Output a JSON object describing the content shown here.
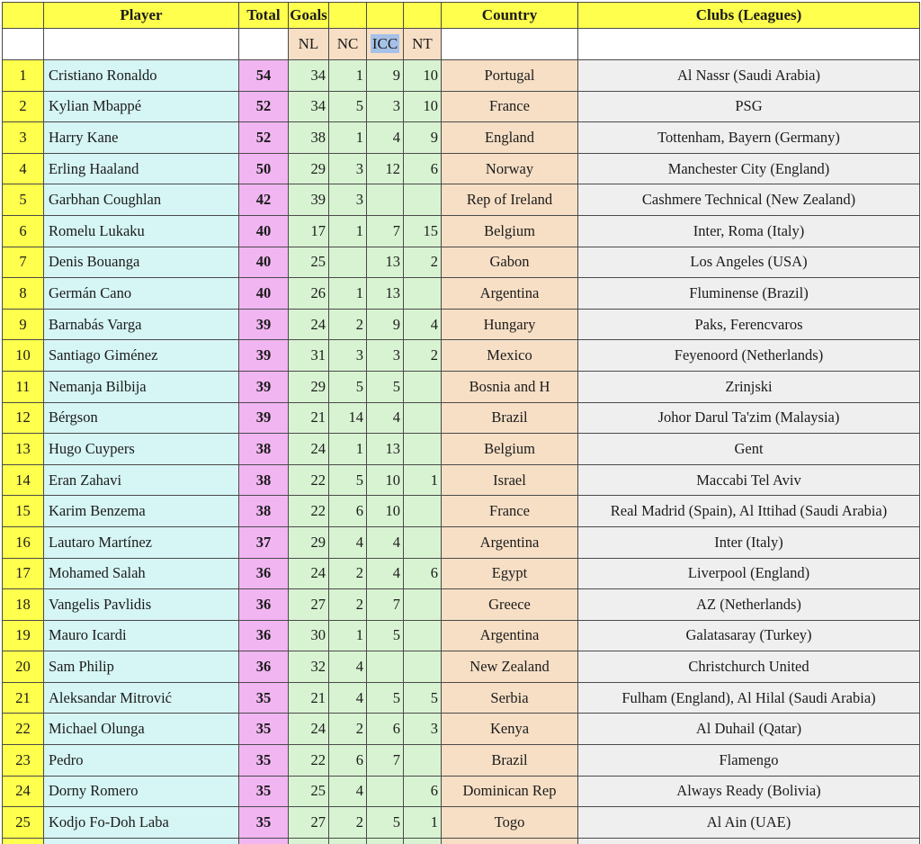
{
  "colors": {
    "yellow": "#FFFF4D",
    "cyan": "#D6F5F5",
    "pink": "#F1B5F1",
    "green": "#D8F3D2",
    "peach": "#F7DFC5",
    "gray": "#EFEFEF",
    "icc_highlight": "#A6C1E8",
    "border": "#4a4a4a"
  },
  "table": {
    "header": {
      "rank": "",
      "player": "Player",
      "total": "Total",
      "goals": "Goals",
      "country": "Country",
      "clubs": "Clubs (Leagues)",
      "subcols": [
        "NL",
        "NC",
        "ICC",
        "NT"
      ],
      "highlighted_subcol": "ICC"
    },
    "rows": [
      {
        "rank": "1",
        "player": "Cristiano Ronaldo",
        "total": "54",
        "nl": "34",
        "nc": "1",
        "icc": "9",
        "nt": "10",
        "country": "Portugal",
        "clubs": "Al Nassr (Saudi Arabia)"
      },
      {
        "rank": "2",
        "player": "Kylian Mbappé",
        "total": "52",
        "nl": "34",
        "nc": "5",
        "icc": "3",
        "nt": "10",
        "country": "France",
        "clubs": "PSG"
      },
      {
        "rank": "3",
        "player": "Harry Kane",
        "total": "52",
        "nl": "38",
        "nc": "1",
        "icc": "4",
        "nt": "9",
        "country": "England",
        "clubs": "Tottenham, Bayern (Germany)"
      },
      {
        "rank": "4",
        "player": "Erling Haaland",
        "total": "50",
        "nl": "29",
        "nc": "3",
        "icc": "12",
        "nt": "6",
        "country": "Norway",
        "clubs": "Manchester City (England)"
      },
      {
        "rank": "5",
        "player": "Garbhan Coughlan",
        "total": "42",
        "nl": "39",
        "nc": "3",
        "icc": "",
        "nt": "",
        "country": "Rep of Ireland",
        "clubs": "Cashmere Technical (New Zealand)"
      },
      {
        "rank": "6",
        "player": "Romelu Lukaku",
        "total": "40",
        "nl": "17",
        "nc": "1",
        "icc": "7",
        "nt": "15",
        "country": "Belgium",
        "clubs": "Inter, Roma (Italy)"
      },
      {
        "rank": "7",
        "player": "Denis Bouanga",
        "total": "40",
        "nl": "25",
        "nc": "",
        "icc": "13",
        "nt": "2",
        "country": "Gabon",
        "clubs": "Los Angeles (USA)"
      },
      {
        "rank": "8",
        "player": "Germán Cano",
        "total": "40",
        "nl": "26",
        "nc": "1",
        "icc": "13",
        "nt": "",
        "country": "Argentina",
        "clubs": "Fluminense (Brazil)"
      },
      {
        "rank": "9",
        "player": "Barnabás Varga",
        "total": "39",
        "nl": "24",
        "nc": "2",
        "icc": "9",
        "nt": "4",
        "country": "Hungary",
        "clubs": "Paks, Ferencvaros"
      },
      {
        "rank": "10",
        "player": "Santiago Giménez",
        "total": "39",
        "nl": "31",
        "nc": "3",
        "icc": "3",
        "nt": "2",
        "country": "Mexico",
        "clubs": "Feyenoord (Netherlands)"
      },
      {
        "rank": "11",
        "player": "Nemanja Bilbija",
        "total": "39",
        "nl": "29",
        "nc": "5",
        "icc": "5",
        "nt": "",
        "country": "Bosnia and H",
        "clubs": "Zrinjski"
      },
      {
        "rank": "12",
        "player": "Bérgson",
        "total": "39",
        "nl": "21",
        "nc": "14",
        "icc": "4",
        "nt": "",
        "country": "Brazil",
        "clubs": "Johor Darul Ta'zim (Malaysia)"
      },
      {
        "rank": "13",
        "player": "Hugo Cuypers",
        "total": "38",
        "nl": "24",
        "nc": "1",
        "icc": "13",
        "nt": "",
        "country": "Belgium",
        "clubs": "Gent"
      },
      {
        "rank": "14",
        "player": "Eran Zahavi",
        "total": "38",
        "nl": "22",
        "nc": "5",
        "icc": "10",
        "nt": "1",
        "country": "Israel",
        "clubs": "Maccabi Tel Aviv"
      },
      {
        "rank": "15",
        "player": "Karim Benzema",
        "total": "38",
        "nl": "22",
        "nc": "6",
        "icc": "10",
        "nt": "",
        "country": "France",
        "clubs": "Real Madrid (Spain), Al Ittihad (Saudi Arabia)"
      },
      {
        "rank": "16",
        "player": "Lautaro Martínez",
        "total": "37",
        "nl": "29",
        "nc": "4",
        "icc": "4",
        "nt": "",
        "country": "Argentina",
        "clubs": "Inter (Italy)"
      },
      {
        "rank": "17",
        "player": "Mohamed Salah",
        "total": "36",
        "nl": "24",
        "nc": "2",
        "icc": "4",
        "nt": "6",
        "country": "Egypt",
        "clubs": "Liverpool (England)"
      },
      {
        "rank": "18",
        "player": "Vangelis Pavlidis",
        "total": "36",
        "nl": "27",
        "nc": "2",
        "icc": "7",
        "nt": "",
        "country": "Greece",
        "clubs": "AZ (Netherlands)"
      },
      {
        "rank": "19",
        "player": "Mauro Icardi",
        "total": "36",
        "nl": "30",
        "nc": "1",
        "icc": "5",
        "nt": "",
        "country": "Argentina",
        "clubs": "Galatasaray (Turkey)"
      },
      {
        "rank": "20",
        "player": "Sam Philip",
        "total": "36",
        "nl": "32",
        "nc": "4",
        "icc": "",
        "nt": "",
        "country": "New Zealand",
        "clubs": "Christchurch United"
      },
      {
        "rank": "21",
        "player": "Aleksandar Mitrović",
        "total": "35",
        "nl": "21",
        "nc": "4",
        "icc": "5",
        "nt": "5",
        "country": "Serbia",
        "clubs": "Fulham (England), Al Hilal (Saudi Arabia)"
      },
      {
        "rank": "22",
        "player": "Michael Olunga",
        "total": "35",
        "nl": "24",
        "nc": "2",
        "icc": "6",
        "nt": "3",
        "country": "Kenya",
        "clubs": "Al Duhail (Qatar)"
      },
      {
        "rank": "23",
        "player": "Pedro",
        "total": "35",
        "nl": "22",
        "nc": "6",
        "icc": "7",
        "nt": "",
        "country": "Brazil",
        "clubs": "Flamengo"
      },
      {
        "rank": "24",
        "player": "Dorny Romero",
        "total": "35",
        "nl": "25",
        "nc": "4",
        "icc": "",
        "nt": "6",
        "country": "Dominican Rep",
        "clubs": "Always Ready (Bolivia)"
      },
      {
        "rank": "25",
        "player": "Kodjo Fo-Doh Laba",
        "total": "35",
        "nl": "27",
        "nc": "2",
        "icc": "5",
        "nt": "1",
        "country": "Togo",
        "clubs": "Al Ain (UAE)"
      },
      {
        "rank": "",
        "player": "",
        "total": "",
        "nl": "",
        "nc": "",
        "icc": "",
        "nt": "",
        "country": "",
        "clubs": ""
      }
    ]
  }
}
